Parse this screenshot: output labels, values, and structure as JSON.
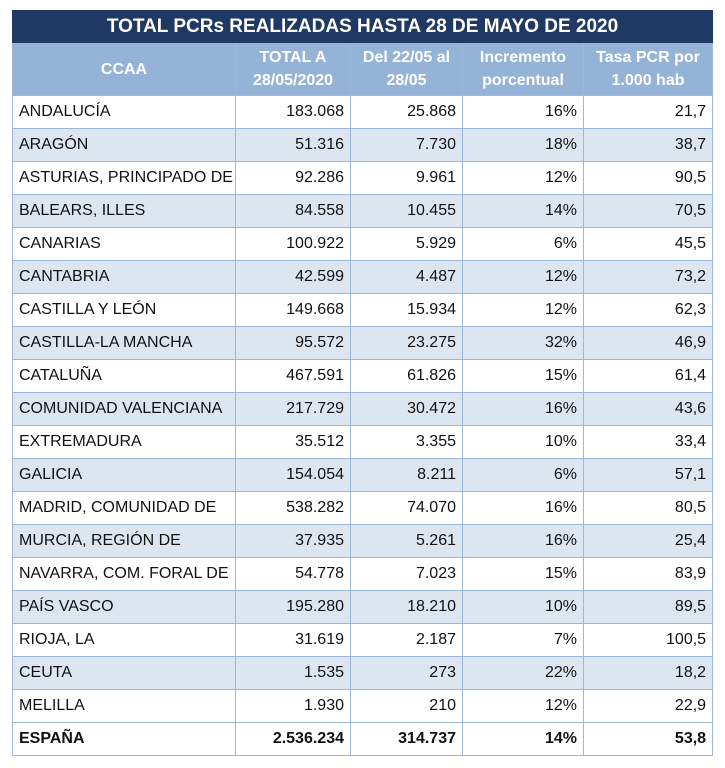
{
  "header": {
    "title": "TOTAL PCRs REALIZADAS HASTA 28 DE MAYO DE 2020"
  },
  "table": {
    "columns": [
      [
        "CCAA"
      ],
      [
        "TOTAL  A",
        "28/05/2020"
      ],
      [
        "Del 22/05 al",
        "28/05"
      ],
      [
        "Incremento",
        "porcentual"
      ],
      [
        "Tasa PCR por",
        "1.000 hab"
      ]
    ],
    "rows": [
      [
        "ANDALUCÍA",
        "183.068",
        "25.868",
        "16%",
        "21,7"
      ],
      [
        "ARAGÓN",
        "51.316",
        "7.730",
        "18%",
        "38,7"
      ],
      [
        "ASTURIAS, PRINCIPADO DE",
        "92.286",
        "9.961",
        "12%",
        "90,5"
      ],
      [
        "BALEARS, ILLES",
        "84.558",
        "10.455",
        "14%",
        "70,5"
      ],
      [
        "CANARIAS",
        "100.922",
        "5.929",
        "6%",
        "45,5"
      ],
      [
        "CANTABRIA",
        "42.599",
        "4.487",
        "12%",
        "73,2"
      ],
      [
        "CASTILLA Y LEÓN",
        "149.668",
        "15.934",
        "12%",
        "62,3"
      ],
      [
        "CASTILLA-LA MANCHA",
        "95.572",
        "23.275",
        "32%",
        "46,9"
      ],
      [
        "CATALUÑA",
        "467.591",
        "61.826",
        "15%",
        "61,4"
      ],
      [
        "COMUNIDAD VALENCIANA",
        "217.729",
        "30.472",
        "16%",
        "43,6"
      ],
      [
        "EXTREMADURA",
        "35.512",
        "3.355",
        "10%",
        "33,4"
      ],
      [
        "GALICIA",
        "154.054",
        "8.211",
        "6%",
        "57,1"
      ],
      [
        "MADRID, COMUNIDAD DE",
        "538.282",
        "74.070",
        "16%",
        "80,5"
      ],
      [
        "MURCIA, REGIÓN DE",
        "37.935",
        "5.261",
        "16%",
        "25,4"
      ],
      [
        "NAVARRA, COM. FORAL DE",
        "54.778",
        "7.023",
        "15%",
        "83,9"
      ],
      [
        "PAÍS VASCO",
        "195.280",
        "18.210",
        "10%",
        "89,5"
      ],
      [
        "RIOJA, LA",
        "31.619",
        "2.187",
        "7%",
        "100,5"
      ],
      [
        "CEUTA",
        "1.535",
        "273",
        "22%",
        "18,2"
      ],
      [
        "MELILLA",
        "1.930",
        "210",
        "12%",
        "22,9"
      ]
    ],
    "total": [
      "ESPAÑA",
      "2.536.234",
      "314.737",
      "14%",
      "53,8"
    ]
  }
}
